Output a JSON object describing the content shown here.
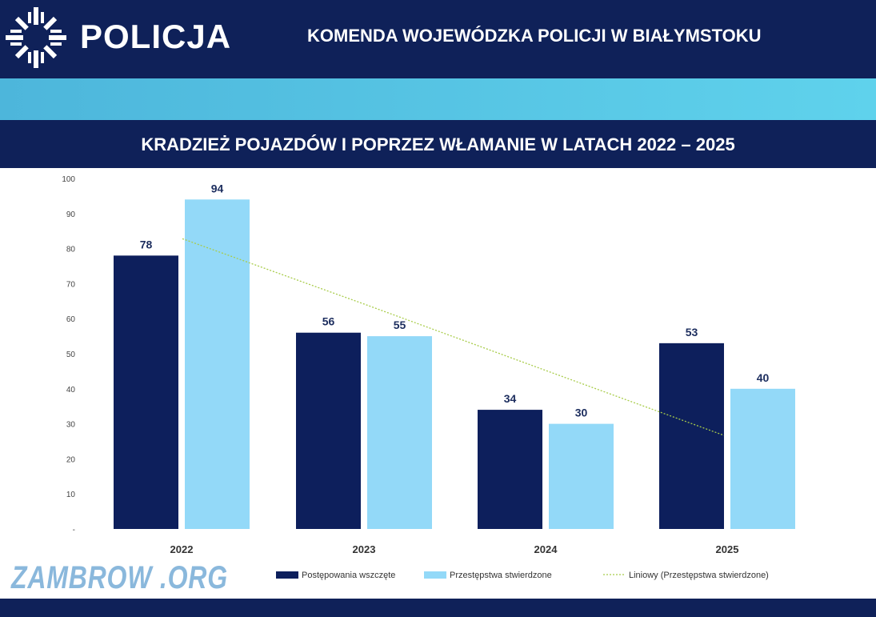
{
  "header": {
    "brand": "POLICJA",
    "organization": "KOMENDA WOJEWÓDZKA POLICJI W BIAŁYMSTOKU"
  },
  "watermark": "ZAMBROW .ORG",
  "colors": {
    "navy": "#0f2159",
    "series1": "#0d1f5c",
    "series2": "#93d9f8",
    "trend": "#a8cc4a"
  },
  "chart_data": {
    "type": "bar",
    "title": "KRADZIEŻ POJAZDÓW I POPRZEZ WŁAMANIE W LATACH 2022 – 2025",
    "categories": [
      "2022",
      "2023",
      "2024",
      "2025"
    ],
    "series": [
      {
        "name": "Postępowania wszczęte",
        "values": [
          78,
          56,
          34,
          53
        ]
      },
      {
        "name": "Przestępstwa stwierdzone",
        "values": [
          94,
          55,
          30,
          40
        ]
      }
    ],
    "trendline": {
      "name": "Liniowy (Przestępstwa stwierdzone)",
      "type": "linear",
      "of_series": "Przestępstwa stwierdzone",
      "values": [
        82.8,
        64.1,
        45.4,
        26.7
      ]
    },
    "ylim": [
      0,
      100
    ],
    "yticks": [
      "-",
      "10",
      "20",
      "30",
      "40",
      "50",
      "60",
      "70",
      "80",
      "90",
      "100"
    ],
    "legend": "bottom",
    "grid": false
  }
}
